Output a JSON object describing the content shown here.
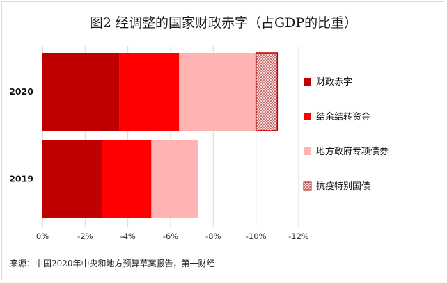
{
  "chart_data": {
    "type": "bar",
    "orientation": "horizontal",
    "stacked": true,
    "title": "图2 经调整的国家财政赤字（占GDP的比重）",
    "source": "来源：中国2020年中央和地方预算草案报告，第一财经",
    "categories": [
      "2020",
      "2019"
    ],
    "series": [
      {
        "name": "财政赤字",
        "color": "#c00000",
        "pattern": "solid",
        "values": [
          -3.6,
          -2.8
        ]
      },
      {
        "name": "结余结转资金",
        "color": "#ff0000",
        "pattern": "solid",
        "values": [
          -2.8,
          -2.3
        ]
      },
      {
        "name": "地方政府专项债券",
        "color": "#ffb3b3",
        "pattern": "solid",
        "values": [
          -3.6,
          -2.2
        ]
      },
      {
        "name": "抗疫特别国债",
        "color": "#f5d0d0",
        "pattern": "dotted",
        "values": [
          -1.0,
          0
        ]
      }
    ],
    "xlim": [
      0,
      -12
    ],
    "xticks": [
      "0%",
      "-2%",
      "-4%",
      "-6%",
      "-8%",
      "-10%",
      "-12%"
    ],
    "tick_values": [
      0,
      -2,
      -4,
      -6,
      -8,
      -10,
      -12
    ],
    "grid": "vertical",
    "legend_position": "right"
  }
}
